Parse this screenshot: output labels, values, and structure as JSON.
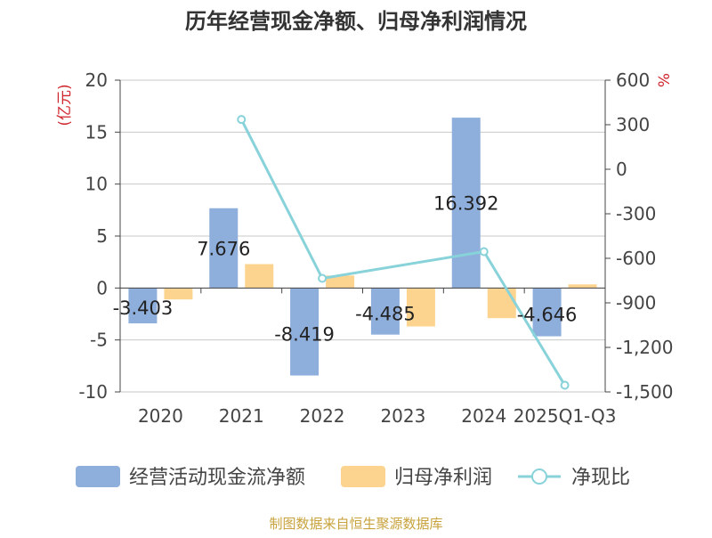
{
  "source": "制图数据来自恒生聚源数据库",
  "chart_data": {
    "type": "bar",
    "title": "历年经营现金净额、归母净利润情况",
    "left_axis_unit": "(亿元)",
    "right_axis_unit": "%",
    "categories": [
      "2020",
      "2021",
      "2022",
      "2023",
      "2024",
      "2025Q1-Q3"
    ],
    "left_ylim": [
      -10,
      20
    ],
    "left_ticks": [
      -10,
      -5,
      0,
      5,
      10,
      15,
      20
    ],
    "right_ylim": [
      -1500,
      600
    ],
    "right_ticks": [
      -1500,
      -1200,
      -900,
      -600,
      -300,
      0,
      300,
      600
    ],
    "right_tick_labels": [
      "-1,500",
      "-1,200",
      "-900",
      "-600",
      "-300",
      "0",
      "300",
      "600"
    ],
    "series": [
      {
        "name": "经营活动现金流净额",
        "type": "bar",
        "axis": "left",
        "color": "#8eaedb",
        "values": [
          -3.403,
          7.676,
          -8.419,
          -4.485,
          16.392,
          -4.646
        ],
        "labels": [
          "-3.403",
          "7.676",
          "-8.419",
          "-4.485",
          "16.392",
          "-4.646"
        ]
      },
      {
        "name": "归母净利润",
        "type": "bar",
        "axis": "left",
        "color": "#fdd48f",
        "values": [
          -1.1,
          2.3,
          1.2,
          -3.7,
          -2.9,
          0.35
        ]
      },
      {
        "name": "净现比",
        "type": "line",
        "axis": "right",
        "color": "#88d2da",
        "values": [
          null,
          335,
          -735,
          null,
          -555,
          -1455
        ]
      }
    ],
    "grid": true,
    "legend_position": "bottom"
  }
}
